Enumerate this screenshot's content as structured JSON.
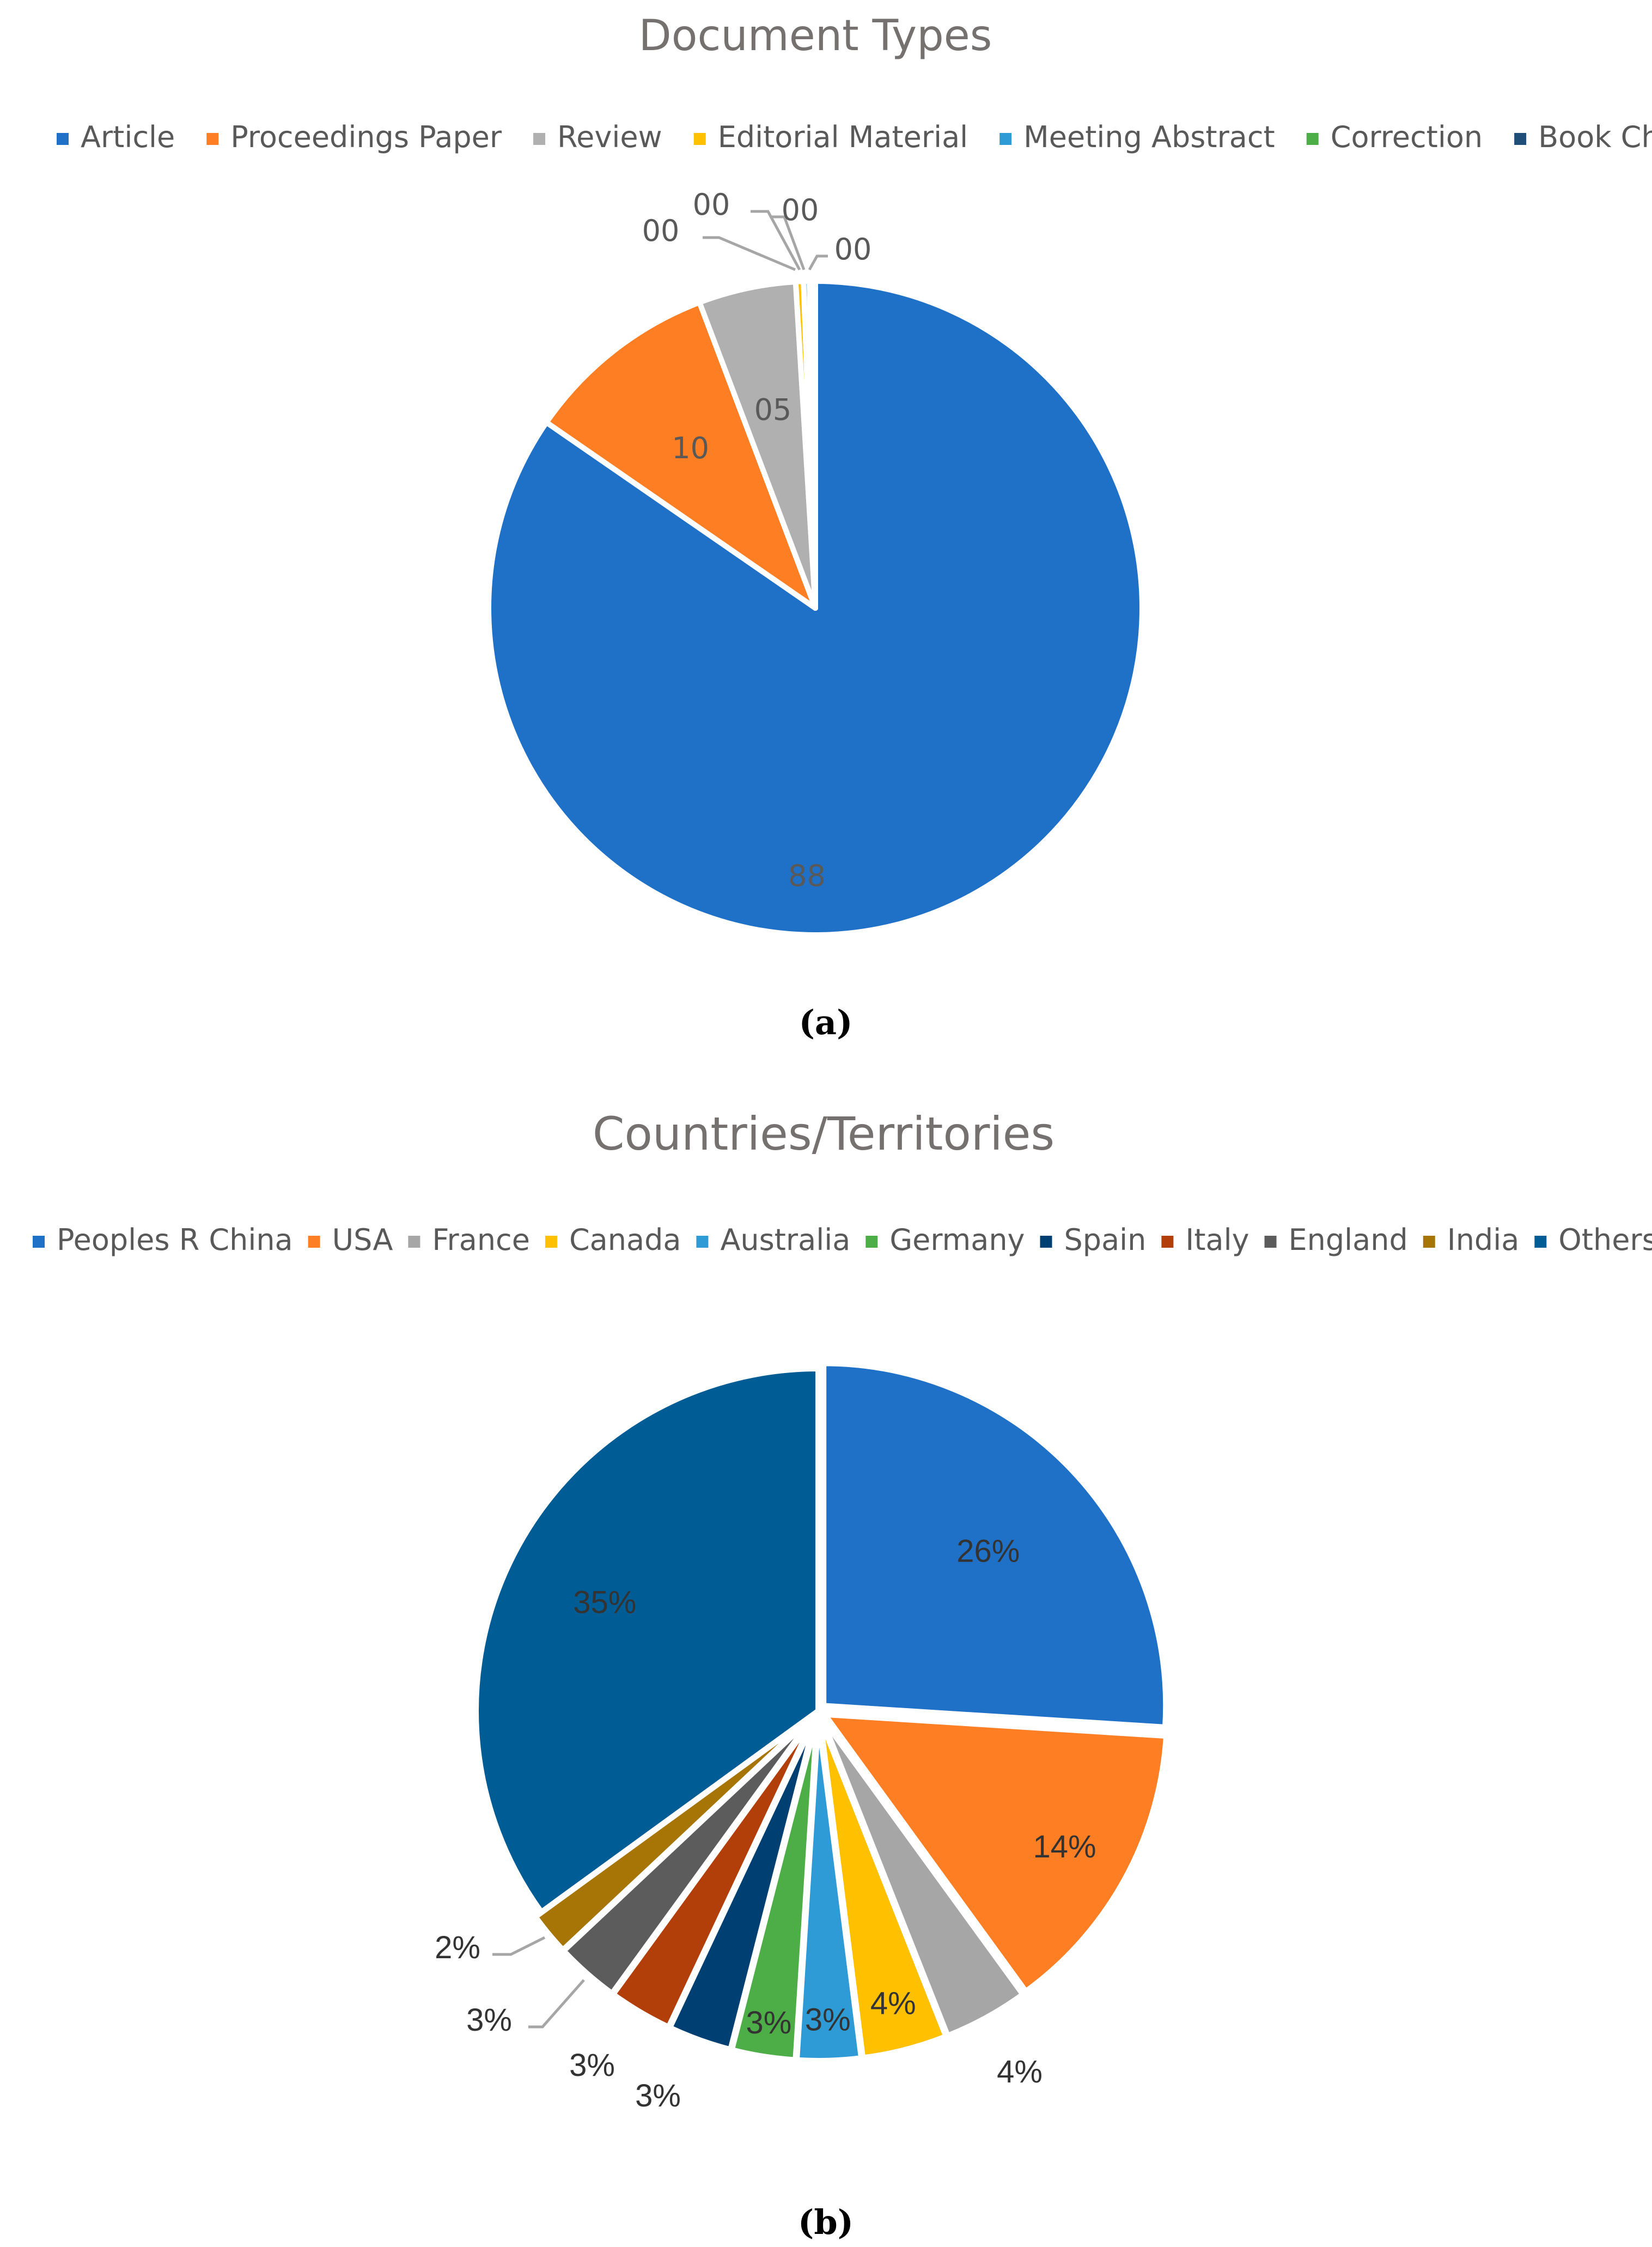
{
  "chart_data": [
    {
      "type": "pie",
      "title": "Document Types",
      "caption": "(a)",
      "legend_position": "top",
      "categories": [
        "Article",
        "Proceedings Paper",
        "Review",
        "Editorial Material",
        "Meeting Abstract",
        "Correction",
        "Book Chapter"
      ],
      "values": [
        88,
        10,
        5,
        0.4,
        0.3,
        0.2,
        0.1
      ],
      "data_labels": [
        "88",
        "10",
        "05",
        "00",
        "00",
        "00",
        "00"
      ],
      "colors": [
        "#1F71C8",
        "#FD7E23",
        "#B0B0B0",
        "#FFC000",
        "#2E9BD6",
        "#4DAE47",
        "#1F4E79"
      ]
    },
    {
      "type": "pie",
      "title": "Countries/Territories",
      "caption": "(b)",
      "legend_position": "top",
      "categories": [
        "Peoples R China",
        "USA",
        "France",
        "Canada",
        "Australia",
        "Germany",
        "Spain",
        "Italy",
        "England",
        "India",
        "Others"
      ],
      "values": [
        26,
        14,
        4,
        4,
        3,
        3,
        3,
        3,
        3,
        2,
        35
      ],
      "data_labels": [
        "26%",
        "14%",
        "4%",
        "4%",
        "3%",
        "3%",
        "3%",
        "3%",
        "3%",
        "2%",
        "35%"
      ],
      "colors": [
        "#1F71C8",
        "#FD7E23",
        "#A6A6A6",
        "#FFC000",
        "#2E9BD6",
        "#4DAE47",
        "#003F72",
        "#B23F0A",
        "#5C5C5C",
        "#A77506",
        "#005C95"
      ]
    }
  ]
}
